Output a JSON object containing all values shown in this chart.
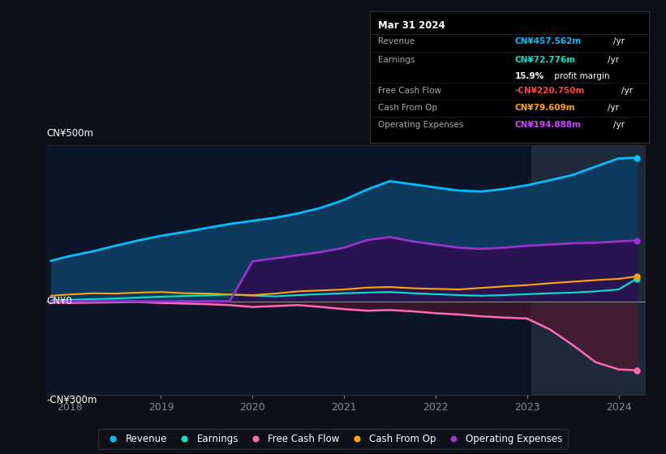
{
  "background_color": "#0d1117",
  "plot_bg_color": "#0a1628",
  "years": [
    2017.8,
    2018.0,
    2018.25,
    2018.5,
    2018.75,
    2019.0,
    2019.25,
    2019.5,
    2019.75,
    2020.0,
    2020.25,
    2020.5,
    2020.75,
    2021.0,
    2021.25,
    2021.5,
    2021.75,
    2022.0,
    2022.25,
    2022.5,
    2022.75,
    2023.0,
    2023.25,
    2023.5,
    2023.75,
    2024.0,
    2024.2
  ],
  "revenue": [
    130,
    145,
    160,
    178,
    195,
    210,
    222,
    235,
    248,
    258,
    268,
    282,
    300,
    325,
    358,
    385,
    375,
    365,
    355,
    352,
    360,
    372,
    388,
    405,
    432,
    458,
    460
  ],
  "earnings": [
    3,
    5,
    7,
    9,
    12,
    15,
    17,
    19,
    22,
    18,
    16,
    20,
    23,
    26,
    28,
    30,
    26,
    23,
    20,
    18,
    20,
    23,
    26,
    28,
    32,
    38,
    73
  ],
  "free_cash_flow": [
    -3,
    -5,
    -4,
    -3,
    -2,
    -5,
    -7,
    -9,
    -12,
    -18,
    -15,
    -12,
    -18,
    -25,
    -30,
    -28,
    -32,
    -38,
    -42,
    -48,
    -52,
    -55,
    -90,
    -140,
    -195,
    -218,
    -221
  ],
  "cash_from_op": [
    18,
    22,
    26,
    25,
    28,
    30,
    26,
    25,
    22,
    20,
    25,
    32,
    35,
    38,
    44,
    46,
    42,
    40,
    38,
    43,
    48,
    52,
    58,
    63,
    68,
    72,
    80
  ],
  "op_expenses": [
    0,
    0,
    0,
    0,
    0,
    0,
    0,
    0,
    0,
    128,
    138,
    148,
    158,
    172,
    196,
    206,
    192,
    182,
    172,
    168,
    172,
    178,
    182,
    186,
    188,
    192,
    195
  ],
  "highlight_x_start": 2023.05,
  "highlight_x_end": 2024.3,
  "xlim": [
    2017.75,
    2024.3
  ],
  "ylim": [
    -300,
    500
  ],
  "xticks": [
    2018,
    2019,
    2020,
    2021,
    2022,
    2023,
    2024
  ],
  "colors": {
    "revenue": "#00bfff",
    "earnings": "#00e5cc",
    "free_cash_flow": "#ff69b4",
    "cash_from_op": "#ffa500",
    "op_expenses": "#9932cc",
    "revenue_fill": "#0d3a5c",
    "op_expenses_fill": "#2a1050",
    "fcf_neg_fill": "#5a1530",
    "zero_line": "#888888",
    "highlight": "#1e2a3a"
  },
  "legend_items": [
    {
      "label": "Revenue",
      "color": "#00bfff"
    },
    {
      "label": "Earnings",
      "color": "#00e5cc"
    },
    {
      "label": "Free Cash Flow",
      "color": "#ff69b4"
    },
    {
      "label": "Cash From Op",
      "color": "#ffa500"
    },
    {
      "label": "Operating Expenses",
      "color": "#9932cc"
    }
  ]
}
